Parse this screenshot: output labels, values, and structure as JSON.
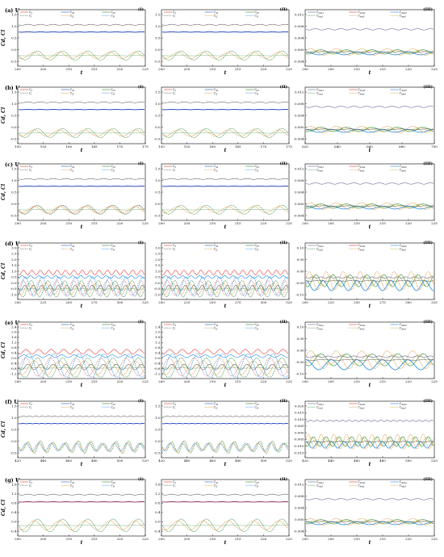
{
  "figure": {
    "ylabel_main": "C_d, C_l",
    "xlabel": "t"
  },
  "colors": {
    "cd": "#e53935",
    "cl": "#2e8b3a",
    "cd_dash": "#c97a7a",
    "cl_dash": "#d98a2b",
    "cdt": "#555555",
    "clt": "#1e88e5",
    "green": "#34a853",
    "gold": "#b9a520"
  },
  "legend_I": [
    "C_d",
    "C_d2",
    "C_d3",
    "C_l",
    "C_l2",
    "C_l3"
  ],
  "legend_I_styles": [
    {
      "color": "#e53935",
      "dash": false
    },
    {
      "color": "#1565c0",
      "dash": false
    },
    {
      "color": "#2e8b3a",
      "dash": false
    },
    {
      "color": "#555555",
      "dash": true
    },
    {
      "color": "#d98a2b",
      "dash": true
    },
    {
      "color": "#1e88e5",
      "dash": true
    }
  ],
  "legend_III": [
    "C_dms1",
    "C_dms2",
    "C_dms3",
    "C_lms1",
    "C_lms2",
    "C_lms3"
  ],
  "legend_III_styles": [
    {
      "color": "#6a6a9a",
      "dash": false
    },
    {
      "color": "#e53935",
      "dash": false
    },
    {
      "color": "#1e88e5",
      "dash": false
    },
    {
      "color": "#2e8b3a",
      "dash": true
    },
    {
      "color": "#d98a2b",
      "dash": true
    },
    {
      "color": "#b9a520",
      "dash": true
    }
  ],
  "rows": [
    {
      "label": "(a) U_r = 2",
      "xt": [
        "200",
        "205",
        "210",
        "215",
        "220",
        "225"
      ],
      "xt3": [
        "200",
        "205",
        "210",
        "215",
        "220",
        "225"
      ],
      "yt1": [
        "1.5",
        "1.0",
        "0.5",
        "0.0",
        "-0.5"
      ],
      "yt3": [
        "0.012",
        "0.008",
        "0.004",
        "0.000",
        "-0.004"
      ]
    },
    {
      "label": "(b) U_r = 3",
      "xt": [
        "150",
        "155",
        "160",
        "165",
        "170",
        "175"
      ],
      "xt3": [
        "620",
        "640",
        "660",
        "680",
        "700"
      ],
      "yt1": [
        "1.5",
        "1.0",
        "0.5",
        "0.0",
        "-0.5"
      ],
      "yt3": [
        "0.012",
        "0.008",
        "0.004",
        "0.000",
        "-0.004"
      ]
    },
    {
      "label": "(c) U_r = 4",
      "xt": [
        "200",
        "205",
        "210",
        "215",
        "220",
        "225"
      ],
      "xt3": [
        "200",
        "205",
        "210",
        "215",
        "220",
        "225"
      ],
      "yt1": [
        "1.5",
        "1.0",
        "0.5",
        "0.0",
        "-0.5"
      ],
      "yt3": [
        "0.012",
        "0.008",
        "0.004",
        "0.000",
        "-0.004"
      ]
    },
    {
      "label": "(d) U_r = 5",
      "xt": [
        "200",
        "225",
        "250",
        "275",
        "300",
        "325"
      ],
      "xt3": [
        "200",
        "225",
        "250",
        "275",
        "300",
        "325"
      ],
      "yt1": [
        "3.0",
        "2.5",
        "2.0",
        "1.5",
        "1.0",
        "0.5",
        "0.0",
        "-0.5",
        "-1.0"
      ],
      "yt3": [
        "0.10",
        "0.05",
        "0.00",
        "-0.05",
        "-0.10"
      ]
    },
    {
      "label": "(e) U_r = 6",
      "xt": [
        "200",
        "205",
        "210",
        "215",
        "220",
        "225"
      ],
      "xt3": [
        "200",
        "205",
        "210",
        "215",
        "220",
        "225"
      ],
      "yt1": [
        "2.4",
        "2.0",
        "1.6",
        "1.2",
        "0.8",
        "0.4",
        "0.0",
        "-0.4",
        "-0.8",
        "-1.2"
      ],
      "yt3": [
        "0.10",
        "0.05",
        "0.00",
        "-0.05",
        "-0.10"
      ]
    },
    {
      "label": "(f) U_r = 7",
      "xt": [
        "420",
        "440",
        "460",
        "480",
        "500",
        "520"
      ],
      "xt3": [
        "420",
        "440",
        "460",
        "480",
        "500",
        "520"
      ],
      "yt1": [
        "1.5",
        "1.0",
        "0.5",
        "0.0",
        "-0.5"
      ],
      "yt3": [
        "0.020",
        "0.015",
        "0.010",
        "0.005",
        "0.000",
        "-0.005",
        "-0.010",
        "-0.015"
      ]
    },
    {
      "label": "(g) U_r = 8",
      "xt": [
        "200",
        "205",
        "210",
        "215",
        "220",
        "225"
      ],
      "xt3": [
        "200",
        "205",
        "210",
        "215",
        "220",
        "225"
      ],
      "yt1": [
        "1.6",
        "1.2",
        "0.8",
        "0.4",
        "0.0",
        "-0.4"
      ],
      "yt3": [
        "0.012",
        "0.008",
        "0.004",
        "0.000",
        "-0.004"
      ]
    }
  ],
  "panel_ids": [
    "(I)",
    "(II)",
    "(III)"
  ],
  "chart_data": {
    "type": "line",
    "title": "",
    "panels": 21,
    "series_I_II": [
      "C_d",
      "C_d2",
      "C_d3",
      "C_l",
      "C_l2",
      "C_l3"
    ],
    "series_III": [
      "C_dms1",
      "C_dms2",
      "C_dms3",
      "C_lms1",
      "C_lms2",
      "C_lms3"
    ],
    "xlabel": "t",
    "ylabel": "C_d, C_l",
    "approx_levels": {
      "mean_drag_I_II": 0.75,
      "mean_drag_row_d_e": 1.9,
      "mean_drag_III": 0.011
    }
  }
}
